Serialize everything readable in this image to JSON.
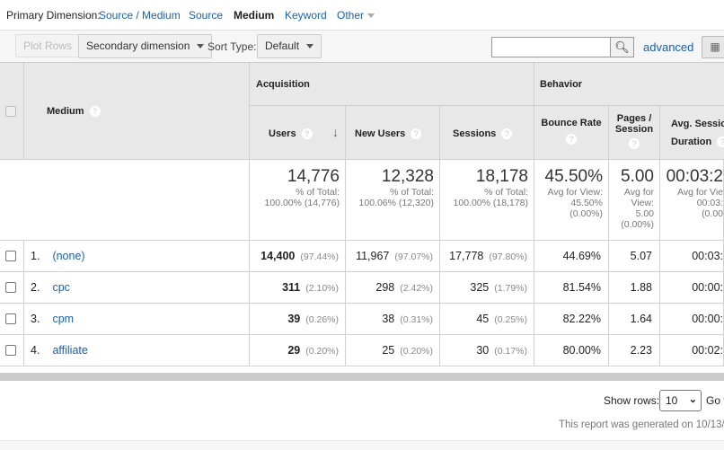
{
  "primary_dimension": {
    "label": "Primary Dimension:",
    "options": [
      "Source / Medium",
      "Source",
      "Medium",
      "Keyword",
      "Other"
    ],
    "selected": "Medium"
  },
  "toolbar": {
    "plot_rows": "Plot Rows",
    "secondary_dimension": "Secondary dimension",
    "sort_type_label": "Sort Type:",
    "sort_type_value": "Default",
    "search_value": "",
    "advanced": "advanced"
  },
  "table": {
    "group_headers": {
      "acquisition": "Acquisition",
      "behavior": "Behavior"
    },
    "columns": {
      "medium": "Medium",
      "users": "Users",
      "new_users": "New Users",
      "sessions": "Sessions",
      "bounce_rate": "Bounce Rate",
      "pages_session_1": "Pages /",
      "pages_session_2": "Session",
      "avg_session_1": "Avg. Sessio",
      "avg_session_2": "Duration"
    },
    "totals": {
      "users": {
        "value": "14,776",
        "l1": "% of Total:",
        "l2": "100.00% (14,776)"
      },
      "new_users": {
        "value": "12,328",
        "l1": "% of Total:",
        "l2": "100.06% (12,320)"
      },
      "sessions": {
        "value": "18,178",
        "l1": "% of Total:",
        "l2": "100.00% (18,178)"
      },
      "bounce_rate": {
        "value": "45.50%",
        "l1": "Avg for View:",
        "l2": "45.50%",
        "l3": "(0.00%)"
      },
      "pages_session": {
        "value": "5.00",
        "l1": "Avg for",
        "l2": "View:",
        "l3": "5.00",
        "l4": "(0.00%)"
      },
      "avg_session": {
        "value": "00:03:2",
        "l1": "Avg for Vie",
        "l2": "00:03:",
        "l3": "(0.00"
      }
    },
    "rows": [
      {
        "index": "1.",
        "medium": "(none)",
        "users": "14,400",
        "users_pct": "(97.44%)",
        "new_users": "11,967",
        "new_users_pct": "(97.07%)",
        "sessions": "17,778",
        "sessions_pct": "(97.80%)",
        "bounce_rate": "44.69%",
        "pages_session": "5.07",
        "avg_session": "00:03:"
      },
      {
        "index": "2.",
        "medium": "cpc",
        "users": "311",
        "users_pct": "(2.10%)",
        "new_users": "298",
        "new_users_pct": "(2.42%)",
        "sessions": "325",
        "sessions_pct": "(1.79%)",
        "bounce_rate": "81.54%",
        "pages_session": "1.88",
        "avg_session": "00:00:"
      },
      {
        "index": "3.",
        "medium": "cpm",
        "users": "39",
        "users_pct": "(0.26%)",
        "new_users": "38",
        "new_users_pct": "(0.31%)",
        "sessions": "45",
        "sessions_pct": "(0.25%)",
        "bounce_rate": "82.22%",
        "pages_session": "1.64",
        "avg_session": "00:00:"
      },
      {
        "index": "4.",
        "medium": "affiliate",
        "users": "29",
        "users_pct": "(0.20%)",
        "new_users": "25",
        "new_users_pct": "(0.20%)",
        "sessions": "30",
        "sessions_pct": "(0.17%)",
        "bounce_rate": "80.00%",
        "pages_session": "2.23",
        "avg_session": "00:02:"
      }
    ]
  },
  "footer": {
    "show_rows_label": "Show rows:",
    "show_rows_value": "10",
    "goto": "Go t",
    "generated": "This report was generated on 10/13/2"
  },
  "colors": {
    "link": "#1a5fb4",
    "header_bg": "#e8e8e8"
  }
}
